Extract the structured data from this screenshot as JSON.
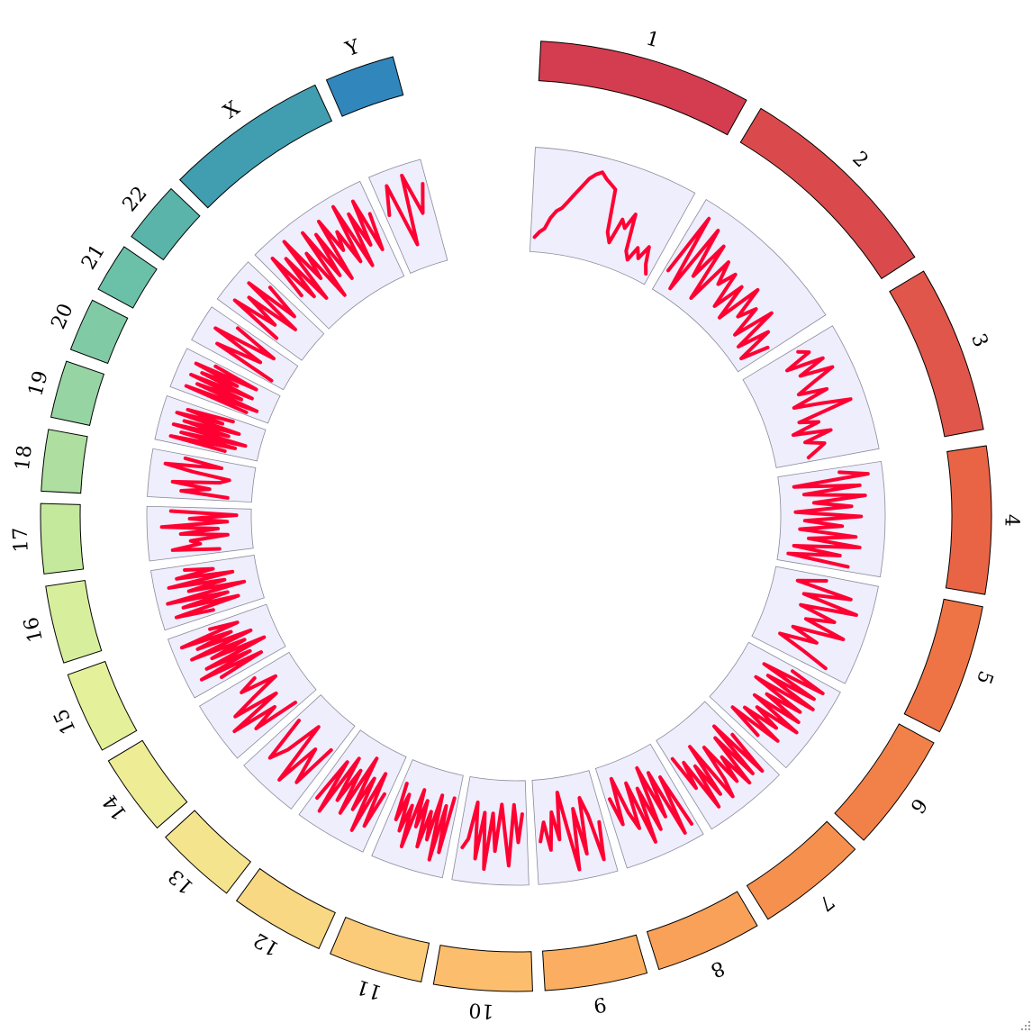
{
  "chart_data": {
    "type": "line",
    "layout": "circular",
    "title": "",
    "track_color": "#ff0033",
    "track_background": "#eeeefc",
    "chromosomes": [
      {
        "name": "1",
        "label": "1",
        "color": "#d43c4f",
        "values": [
          0.1,
          0.16,
          0.2,
          0.32,
          0.4,
          0.44,
          0.52,
          0.61,
          0.7,
          0.8,
          0.86,
          0.9,
          0.84,
          0.8,
          0.76,
          0.3,
          0.2,
          0.48,
          0.4,
          0.58,
          0.18,
          0.1,
          0.26,
          0.16,
          0.32,
          0.14,
          0.05
        ]
      },
      {
        "name": "2",
        "label": "2",
        "color": "#da4a4c",
        "values": [
          0.2,
          0.9,
          0.05,
          0.85,
          0.3,
          0.75,
          0.1,
          0.65,
          0.4,
          0.6,
          0.2,
          0.55,
          0.15,
          0.65,
          0.3,
          0.5,
          0.15,
          0.6,
          0.1,
          0.45,
          0.05,
          0.35
        ]
      },
      {
        "name": "3",
        "label": "3",
        "color": "#e0564a",
        "values": [
          0.6,
          0.7,
          0.4,
          0.8,
          0.5,
          0.85,
          0.6,
          0.4,
          0.7,
          0.3,
          0.6,
          0.9,
          0.3,
          0.5,
          0.2,
          0.6,
          0.3,
          0.5,
          0.4,
          0.3
        ]
      },
      {
        "name": "4",
        "label": "4",
        "color": "#e96445",
        "values": [
          0.6,
          0.9,
          0.1,
          0.8,
          0.2,
          0.85,
          0.3,
          0.7,
          0.1,
          0.8,
          0.2,
          0.6,
          0.15,
          0.75,
          0.25,
          0.8,
          0.1,
          0.6,
          0.05,
          0.7
        ]
      },
      {
        "name": "5",
        "label": "5",
        "color": "#ef7445",
        "values": [
          0.5,
          0.2,
          0.8,
          0.3,
          0.9,
          0.3,
          0.7,
          0.4,
          0.85,
          0.3,
          0.6,
          0.2,
          0.5,
          0.8
        ]
      },
      {
        "name": "6",
        "label": "6",
        "color": "#f28149",
        "values": [
          0.5,
          0.9,
          0.2,
          0.85,
          0.3,
          0.9,
          0.2,
          0.8,
          0.4,
          0.85,
          0.3,
          0.9,
          0.4,
          0.7,
          0.3,
          0.8,
          0.2,
          0.6
        ]
      },
      {
        "name": "7",
        "label": "7",
        "color": "#f5904f",
        "values": [
          0.4,
          0.9,
          0.2,
          0.85,
          0.3,
          0.9,
          0.5,
          0.8,
          0.3,
          0.7,
          0.9,
          0.2,
          0.8,
          0.4,
          0.9,
          0.3,
          0.6,
          0.2
        ]
      },
      {
        "name": "8",
        "label": "8",
        "color": "#f9a059",
        "values": [
          0.9,
          0.3,
          0.95,
          0.2,
          0.7,
          0.1,
          0.8,
          0.3,
          0.9,
          0.2,
          0.7,
          0.5,
          0.1,
          0.6,
          0.3
        ]
      },
      {
        "name": "9",
        "label": "9",
        "color": "#fbae61",
        "values": [
          0.5,
          0.9,
          0.4,
          0.2,
          0.8,
          0.3,
          0.95,
          0.5,
          0.1,
          0.6,
          0.3,
          0.7,
          0.4,
          0.6
        ]
      },
      {
        "name": "10",
        "label": "10",
        "color": "#fcbd6d",
        "values": [
          0.3,
          0.6,
          0.2,
          0.85,
          0.5,
          0.2,
          0.7,
          0.3,
          0.9,
          0.3,
          0.8,
          0.2,
          0.6,
          0.7
        ]
      },
      {
        "name": "11",
        "label": "11",
        "color": "#fccb79",
        "values": [
          0.2,
          0.8,
          0.3,
          0.9,
          0.2,
          0.7,
          0.4,
          0.8,
          0.3,
          0.6,
          0.2,
          0.85,
          0.4,
          0.7,
          0.3,
          0.6,
          0.2
        ]
      },
      {
        "name": "12",
        "label": "12",
        "color": "#f9d884",
        "values": [
          0.4,
          0.8,
          0.2,
          0.9,
          0.3,
          0.7,
          0.1,
          0.8,
          0.3,
          0.7,
          0.2,
          0.9,
          0.3,
          0.8
        ]
      },
      {
        "name": "13",
        "label": "13",
        "color": "#f5e48e",
        "values": [
          0.3,
          0.8,
          0.4,
          0.9,
          0.2,
          0.6,
          0.8,
          0.3
        ]
      },
      {
        "name": "14",
        "label": "14",
        "color": "#eeec95",
        "values": [
          0.2,
          0.7,
          0.4,
          0.9,
          0.3,
          0.8,
          0.5,
          0.2,
          0.6,
          0.4
        ]
      },
      {
        "name": "15",
        "label": "15",
        "color": "#e5f19a",
        "values": [
          0.7,
          0.2,
          0.9,
          0.3,
          0.8,
          0.1,
          0.7,
          0.3,
          0.9,
          0.2,
          0.8,
          0.4,
          0.95,
          0.3,
          0.6
        ]
      },
      {
        "name": "16",
        "label": "16",
        "color": "#d7ef9c",
        "values": [
          0.5,
          0.9,
          0.2,
          0.8,
          0.3,
          0.95,
          0.1,
          0.7,
          0.3,
          0.9,
          0.2,
          0.8,
          0.4,
          0.7
        ]
      },
      {
        "name": "17",
        "label": "17",
        "color": "#c4e99d",
        "values": [
          0.3,
          0.8,
          0.5,
          0.6,
          0.2,
          0.7,
          0.3,
          0.9,
          0.2,
          0.6,
          0.1,
          0.8
        ]
      },
      {
        "name": "18",
        "label": "18",
        "color": "#aedfa0",
        "values": [
          0.2,
          0.7,
          0.4,
          0.8,
          0.3,
          0.2,
          0.6,
          0.9,
          0.3,
          0.7
        ]
      },
      {
        "name": "19",
        "label": "19",
        "color": "#96d5a3",
        "values": [
          0.3,
          0.9,
          0.2,
          0.8,
          0.1,
          0.9,
          0.3,
          0.8,
          0.2,
          0.9,
          0.4,
          0.8,
          0.3
        ]
      },
      {
        "name": "20",
        "label": "20",
        "color": "#80cba5",
        "values": [
          0.2,
          0.9,
          0.1,
          0.8,
          0.3,
          0.9,
          0.2,
          0.8,
          0.4,
          0.9,
          0.2,
          0.7
        ]
      },
      {
        "name": "21",
        "label": "21",
        "color": "#6bc0a8",
        "values": [
          0.1,
          0.8,
          0.3,
          0.9,
          0.2,
          0.7
        ]
      },
      {
        "name": "22",
        "label": "22",
        "color": "#5ab4a9",
        "values": [
          0.3,
          0.9,
          0.4,
          0.8,
          0.2,
          0.9,
          0.3,
          0.7
        ]
      },
      {
        "name": "X",
        "label": "X",
        "color": "#419eb0",
        "values": [
          0.4,
          0.9,
          0.3,
          0.8,
          0.2,
          0.95,
          0.4,
          0.7,
          0.1,
          0.9,
          0.3,
          0.8,
          0.2,
          0.9,
          0.5,
          0.7,
          0.3,
          0.95,
          0.2,
          0.8,
          0.4,
          0.9,
          0.3,
          0.7
        ]
      },
      {
        "name": "Y",
        "label": "Y",
        "color": "#3187bc",
        "values": [
          0.6,
          0.9,
          0.2,
          0.95,
          0.5,
          0.8
        ]
      }
    ]
  }
}
